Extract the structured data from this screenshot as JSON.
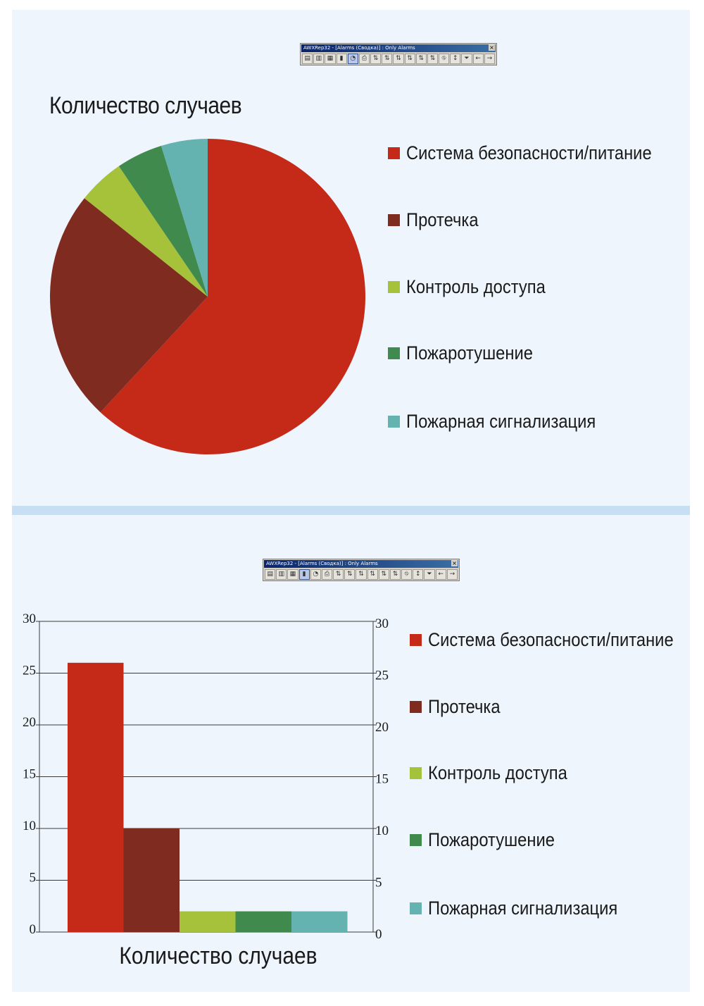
{
  "toolbar": {
    "title": "AWXRep32 - [Alarms (Сводка)] : Only Alarms",
    "close_glyph": "×",
    "icons": [
      "table-icon",
      "table2-icon",
      "grid-icon",
      "bar-chart-icon",
      "pie-chart-icon",
      "print-icon",
      "filter1-icon",
      "filter2-icon",
      "filter3-icon",
      "filter4-icon",
      "filter5-icon",
      "filter6-icon",
      "tree-icon",
      "sort-az-icon",
      "funnel-icon",
      "back-arrow-icon",
      "forward-arrow-icon"
    ]
  },
  "colors": {
    "panel_bg": "#eef5fc",
    "divider": "#c6dff3",
    "series": [
      "#c42a17",
      "#7f2b20",
      "#a6c23a",
      "#418a4d",
      "#64b3b1"
    ]
  },
  "legend": {
    "items": [
      {
        "label": "Система безопасности/питание",
        "color": "#c42a17"
      },
      {
        "label": "Протечка",
        "color": "#7f2b20"
      },
      {
        "label": "Контроль доступа",
        "color": "#a6c23a"
      },
      {
        "label": "Пожаротушение",
        "color": "#418a4d"
      },
      {
        "label": "Пожарная сигнализация",
        "color": "#64b3b1"
      }
    ]
  },
  "chart_data": [
    {
      "type": "pie",
      "title": "Количество случаев",
      "categories": [
        "Система безопасности/питание",
        "Протечка",
        "Контроль доступа",
        "Пожаротушение",
        "Пожарная сигнализация"
      ],
      "values": [
        26,
        10,
        2,
        2,
        2
      ],
      "start": "12 o'clock, clockwise",
      "legend_position": "right"
    },
    {
      "type": "bar",
      "title": "",
      "xlabel": "Количество случаев",
      "ylabel": "",
      "categories": [
        "Система безопасности/питание",
        "Протечка",
        "Контроль доступа",
        "Пожаротушение",
        "Пожарная сигнализация"
      ],
      "values": [
        26,
        10,
        2,
        2,
        2
      ],
      "ylim": [
        0,
        30
      ],
      "yticks": [
        "0",
        "5",
        "10",
        "15",
        "20",
        "25",
        "30"
      ],
      "right_axis_mirrored": true,
      "grid": true,
      "legend_position": "right"
    }
  ]
}
